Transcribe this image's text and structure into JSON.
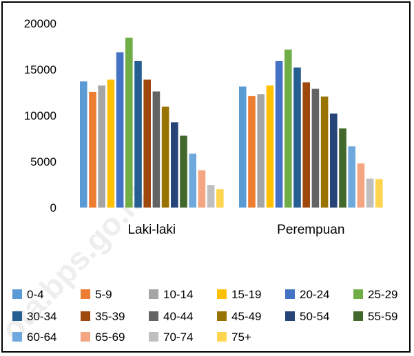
{
  "chart_data": {
    "type": "bar",
    "categories": [
      "Laki-laki",
      "Perempuan"
    ],
    "ylim": [
      0,
      20000
    ],
    "yticks": [
      0,
      5000,
      10000,
      15000,
      20000
    ],
    "grid": false,
    "legend_position": "bottom",
    "series": [
      {
        "name": "0-4",
        "color": "#5B9BD5",
        "values": [
          13700,
          13150
        ]
      },
      {
        "name": "5-9",
        "color": "#ED7D31",
        "values": [
          12550,
          12100
        ]
      },
      {
        "name": "10-14",
        "color": "#A5A5A5",
        "values": [
          13250,
          12300
        ]
      },
      {
        "name": "15-19",
        "color": "#FFC000",
        "values": [
          13900,
          13250
        ]
      },
      {
        "name": "20-24",
        "color": "#4472C4",
        "values": [
          16850,
          15900
        ]
      },
      {
        "name": "25-29",
        "color": "#70AD47",
        "values": [
          18450,
          17150
        ]
      },
      {
        "name": "30-34",
        "color": "#255E91",
        "values": [
          15900,
          15200
        ]
      },
      {
        "name": "35-39",
        "color": "#9E480E",
        "values": [
          13900,
          13600
        ]
      },
      {
        "name": "40-44",
        "color": "#636363",
        "values": [
          12600,
          12900
        ]
      },
      {
        "name": "45-49",
        "color": "#997300",
        "values": [
          10950,
          12050
        ]
      },
      {
        "name": "50-54",
        "color": "#264478",
        "values": [
          9250,
          10200
        ]
      },
      {
        "name": "55-59",
        "color": "#43682B",
        "values": [
          7800,
          8600
        ]
      },
      {
        "name": "60-64",
        "color": "#6FA8DC",
        "values": [
          5850,
          6650
        ]
      },
      {
        "name": "65-69",
        "color": "#F4A582",
        "values": [
          4050,
          4800
        ]
      },
      {
        "name": "70-74",
        "color": "#BFBFBF",
        "values": [
          2450,
          3150
        ]
      },
      {
        "name": "75+",
        "color": "#FFD54F",
        "values": [
          2000,
          3100
        ]
      }
    ]
  },
  "watermark": "ota.bps.go.id"
}
